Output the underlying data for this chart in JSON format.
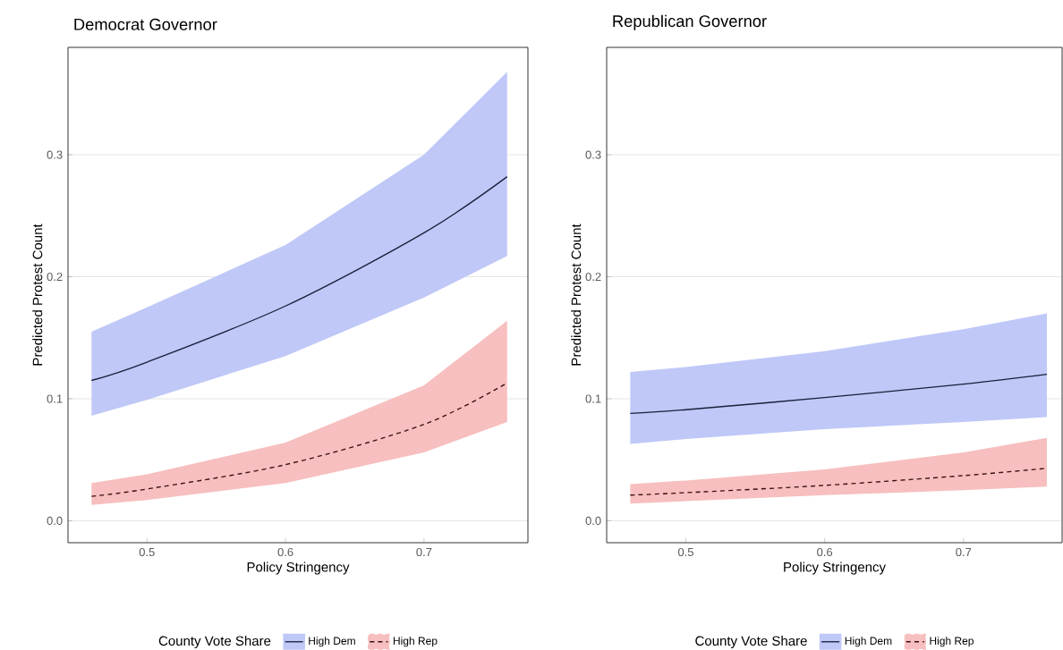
{
  "chart_data": [
    {
      "type": "line",
      "title": "Democrat Governor",
      "xlabel": "Policy Stringency",
      "ylabel": "Predicted Protest Count",
      "legend_title": "County Vote Share",
      "legend": "bottom",
      "grid": "y",
      "x": [
        0.46,
        0.5,
        0.6,
        0.7,
        0.76
      ],
      "xlim": [
        0.443,
        0.775
      ],
      "ylim": [
        -0.018,
        0.388
      ],
      "xticks": [
        0.5,
        0.6,
        0.7
      ],
      "yticks": [
        {
          "value": 0,
          "label": "0.0"
        },
        0.1,
        0.2,
        0.3
      ],
      "series": [
        {
          "name": "High Dem",
          "color": "#1a1f3a",
          "line_style": "solid",
          "values": [
            0.115,
            0.13,
            0.176,
            0.236,
            0.282
          ],
          "lower": [
            0.086,
            0.099,
            0.135,
            0.183,
            0.217
          ],
          "upper": [
            0.155,
            0.175,
            0.226,
            0.3,
            0.368
          ]
        },
        {
          "name": "High Rep",
          "color": "#3a1010",
          "line_style": "dashed",
          "values": [
            0.02,
            0.026,
            0.046,
            0.079,
            0.113
          ],
          "lower": [
            0.013,
            0.017,
            0.031,
            0.056,
            0.081
          ],
          "upper": [
            0.031,
            0.038,
            0.064,
            0.111,
            0.164
          ]
        }
      ]
    },
    {
      "type": "line",
      "title": "Republican Governor",
      "xlabel": "Policy Stringency",
      "ylabel": "Predicted Protest Count",
      "legend_title": "County Vote Share",
      "legend": "bottom",
      "grid": "y",
      "x": [
        0.46,
        0.5,
        0.6,
        0.7,
        0.76
      ],
      "xlim": [
        0.443,
        0.771
      ],
      "ylim": [
        -0.018,
        0.388
      ],
      "xticks": [
        0.5,
        0.6,
        0.7
      ],
      "yticks": [
        {
          "value": 0,
          "label": "0.0"
        },
        0.1,
        0.2,
        0.3
      ],
      "series": [
        {
          "name": "High Dem",
          "color": "#1a1f3a",
          "line_style": "solid",
          "values": [
            0.088,
            0.091,
            0.101,
            0.112,
            0.12
          ],
          "lower": [
            0.063,
            0.067,
            0.075,
            0.081,
            0.085
          ],
          "upper": [
            0.122,
            0.126,
            0.139,
            0.157,
            0.17
          ]
        },
        {
          "name": "High Rep",
          "color": "#3a1010",
          "line_style": "dashed",
          "values": [
            0.021,
            0.023,
            0.029,
            0.037,
            0.043
          ],
          "lower": [
            0.014,
            0.016,
            0.021,
            0.025,
            0.028
          ],
          "upper": [
            0.03,
            0.033,
            0.042,
            0.056,
            0.068
          ]
        }
      ]
    }
  ]
}
